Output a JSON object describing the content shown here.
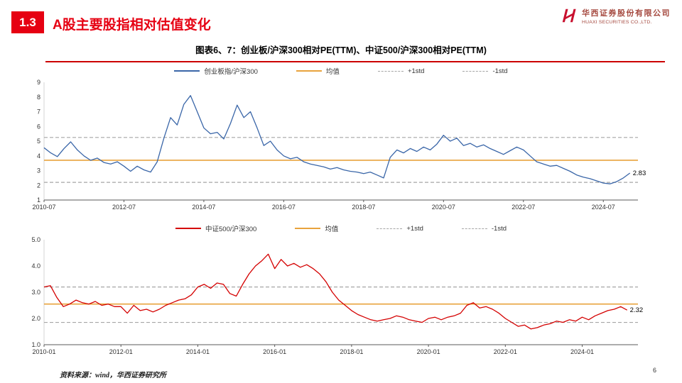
{
  "header": {
    "section_no": "1.3",
    "title": "A股主要股指相对估值变化"
  },
  "logo": {
    "cn": "华西证券股份有限公司",
    "en": "HUAXI SECURITIES CO.,LTD."
  },
  "figure_title": "图表6、7：创业板/沪深300相对PE(TTM)、中证500/沪深300相对PE(TTM)",
  "footer": {
    "source": "资料来源：wind，华西证券研究所",
    "page": "6"
  },
  "colors": {
    "accent_red": "#e60012",
    "rule_red": "#cc0000",
    "blue": "#3a66a8",
    "orange": "#e8a33d",
    "gray": "#a6a6a6",
    "red_line": "#d40000",
    "logo_red": "#c8102e"
  },
  "chart_data": [
    {
      "type": "line",
      "title": "创业板/沪深300相对PE(TTM)",
      "legend": [
        {
          "label": "创业板指/沪深300",
          "color": "#3a66a8",
          "dash": false
        },
        {
          "label": "均值",
          "color": "#e8a33d",
          "dash": false
        },
        {
          "label": "+1std",
          "color": "#a6a6a6",
          "dash": true
        },
        {
          "label": "-1std",
          "color": "#a6a6a6",
          "dash": true
        }
      ],
      "ylim": [
        1,
        9
      ],
      "yticks": [
        {
          "v": 1,
          "label": "1"
        },
        {
          "v": 2,
          "label": "2"
        },
        {
          "v": 3,
          "label": "3"
        },
        {
          "v": 4,
          "label": "4"
        },
        {
          "v": 5,
          "label": "5"
        },
        {
          "v": 6,
          "label": "6"
        },
        {
          "v": 7,
          "label": "7"
        },
        {
          "v": 8,
          "label": "8"
        },
        {
          "v": 9,
          "label": "9"
        }
      ],
      "xlim": [
        2010.583,
        2025.45
      ],
      "xticks": [
        {
          "v": 2010.583,
          "label": "2010-07"
        },
        {
          "v": 2012.583,
          "label": "2012-07"
        },
        {
          "v": 2014.583,
          "label": "2014-07"
        },
        {
          "v": 2016.583,
          "label": "2016-07"
        },
        {
          "v": 2018.583,
          "label": "2018-07"
        },
        {
          "v": 2020.583,
          "label": "2020-07"
        },
        {
          "v": 2022.583,
          "label": "2022-07"
        },
        {
          "v": 2024.583,
          "label": "2024-07"
        }
      ],
      "mean": 3.7,
      "std_plus": 5.25,
      "std_minus": 2.2,
      "mean_color": "#e8a33d",
      "std_color": "#a6a6a6",
      "end_label": "2.83",
      "series": {
        "name": "创业板指/沪深300",
        "color": "#3a66a8",
        "x_start": 2010.583,
        "x_step": 0.166667,
        "values": [
          4.55,
          4.2,
          3.95,
          4.5,
          4.95,
          4.4,
          4.0,
          3.7,
          3.85,
          3.55,
          3.45,
          3.6,
          3.3,
          2.95,
          3.3,
          3.05,
          2.9,
          3.6,
          5.2,
          6.6,
          6.1,
          7.5,
          8.1,
          7.0,
          5.9,
          5.5,
          5.6,
          5.15,
          6.2,
          7.45,
          6.6,
          7.0,
          5.9,
          4.7,
          5.0,
          4.4,
          4.0,
          3.8,
          3.9,
          3.6,
          3.45,
          3.35,
          3.25,
          3.1,
          3.2,
          3.05,
          2.95,
          2.9,
          2.8,
          2.9,
          2.7,
          2.5,
          3.9,
          4.4,
          4.2,
          4.5,
          4.3,
          4.6,
          4.4,
          4.8,
          5.4,
          5.0,
          5.2,
          4.7,
          4.85,
          4.6,
          4.75,
          4.5,
          4.3,
          4.1,
          4.35,
          4.6,
          4.4,
          4.0,
          3.6,
          3.45,
          3.3,
          3.35,
          3.15,
          2.95,
          2.7,
          2.55,
          2.45,
          2.3,
          2.15,
          2.1,
          2.25,
          2.5,
          2.83
        ]
      }
    },
    {
      "type": "line",
      "title": "中证500/沪深300相对PE(TTM)",
      "legend": [
        {
          "label": "中证500/沪深300",
          "color": "#d40000",
          "dash": false
        },
        {
          "label": "均值",
          "color": "#e8a33d",
          "dash": false
        },
        {
          "label": "+1std",
          "color": "#a6a6a6",
          "dash": true
        },
        {
          "label": "-1std",
          "color": "#a6a6a6",
          "dash": true
        }
      ],
      "ylim": [
        1.0,
        5.0
      ],
      "yticks": [
        {
          "v": 1.0,
          "label": "1.0"
        },
        {
          "v": 2.0,
          "label": "2.0"
        },
        {
          "v": 3.0,
          "label": "3.0"
        },
        {
          "v": 4.0,
          "label": "4.0"
        },
        {
          "v": 5.0,
          "label": "5.0"
        }
      ],
      "xlim": [
        2010.0,
        2025.45
      ],
      "xticks": [
        {
          "v": 2010.0,
          "label": "2010-01"
        },
        {
          "v": 2012.0,
          "label": "2012-01"
        },
        {
          "v": 2014.0,
          "label": "2014-01"
        },
        {
          "v": 2016.0,
          "label": "2016-01"
        },
        {
          "v": 2018.0,
          "label": "2018-01"
        },
        {
          "v": 2020.0,
          "label": "2020-01"
        },
        {
          "v": 2022.0,
          "label": "2022-01"
        },
        {
          "v": 2024.0,
          "label": "2024-01"
        }
      ],
      "mean": 2.55,
      "std_plus": 3.2,
      "std_minus": 1.85,
      "mean_color": "#e8a33d",
      "std_color": "#a6a6a6",
      "end_label": "2.32",
      "series": {
        "name": "中证500/沪深300",
        "color": "#d40000",
        "x_start": 2010.0,
        "x_step": 0.166667,
        "values": [
          3.2,
          3.25,
          2.8,
          2.45,
          2.55,
          2.7,
          2.6,
          2.55,
          2.65,
          2.5,
          2.55,
          2.45,
          2.45,
          2.2,
          2.5,
          2.3,
          2.35,
          2.25,
          2.35,
          2.5,
          2.6,
          2.7,
          2.75,
          2.9,
          3.2,
          3.3,
          3.15,
          3.35,
          3.3,
          2.95,
          2.85,
          3.3,
          3.7,
          4.0,
          4.2,
          4.45,
          3.9,
          4.25,
          4.0,
          4.1,
          3.95,
          4.05,
          3.9,
          3.7,
          3.4,
          3.0,
          2.7,
          2.5,
          2.3,
          2.15,
          2.05,
          1.95,
          1.9,
          1.95,
          2.0,
          2.1,
          2.05,
          1.95,
          1.9,
          1.85,
          2.0,
          2.05,
          1.95,
          2.05,
          2.1,
          2.2,
          2.5,
          2.6,
          2.4,
          2.45,
          2.35,
          2.2,
          2.0,
          1.85,
          1.7,
          1.75,
          1.6,
          1.65,
          1.75,
          1.8,
          1.9,
          1.85,
          1.95,
          1.9,
          2.05,
          1.95,
          2.1,
          2.2,
          2.3,
          2.35,
          2.45,
          2.32
        ]
      }
    }
  ]
}
